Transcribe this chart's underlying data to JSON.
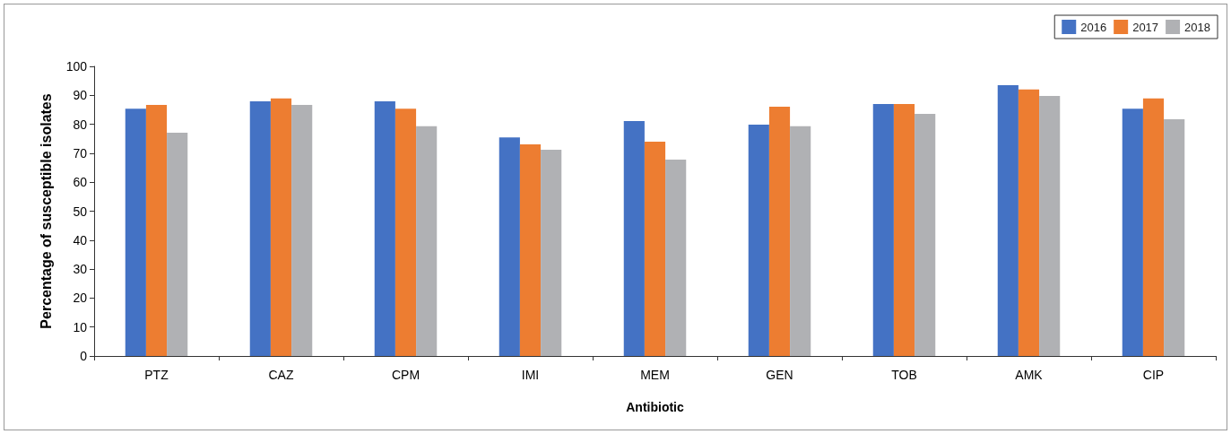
{
  "chart_data": {
    "type": "bar",
    "xlabel": "Antibiotic",
    "ylabel": "Percentage of susceptible isolates",
    "categories": [
      "PTZ",
      "CAZ",
      "CPM",
      "IMI",
      "MEM",
      "GEN",
      "TOB",
      "AMK",
      "CIP"
    ],
    "series": [
      {
        "name": "2016",
        "color": "#4472c4",
        "values": [
          85.4,
          87.9,
          87.9,
          75.5,
          81.1,
          79.9,
          87.0,
          93.5,
          85.4
        ]
      },
      {
        "name": "2017",
        "color": "#ed7d31",
        "values": [
          86.7,
          88.9,
          85.4,
          73.1,
          74.0,
          86.1,
          87.0,
          92.0,
          88.9
        ]
      },
      {
        "name": "2018",
        "color": "#b0b1b4",
        "values": [
          77.1,
          86.7,
          79.3,
          71.2,
          67.8,
          79.3,
          83.6,
          89.8,
          81.7
        ]
      }
    ],
    "ylim": [
      0,
      100
    ],
    "yticks": [
      0,
      10,
      20,
      30,
      40,
      50,
      60,
      70,
      80,
      90,
      100
    ],
    "grid": false,
    "legend": "top right"
  }
}
